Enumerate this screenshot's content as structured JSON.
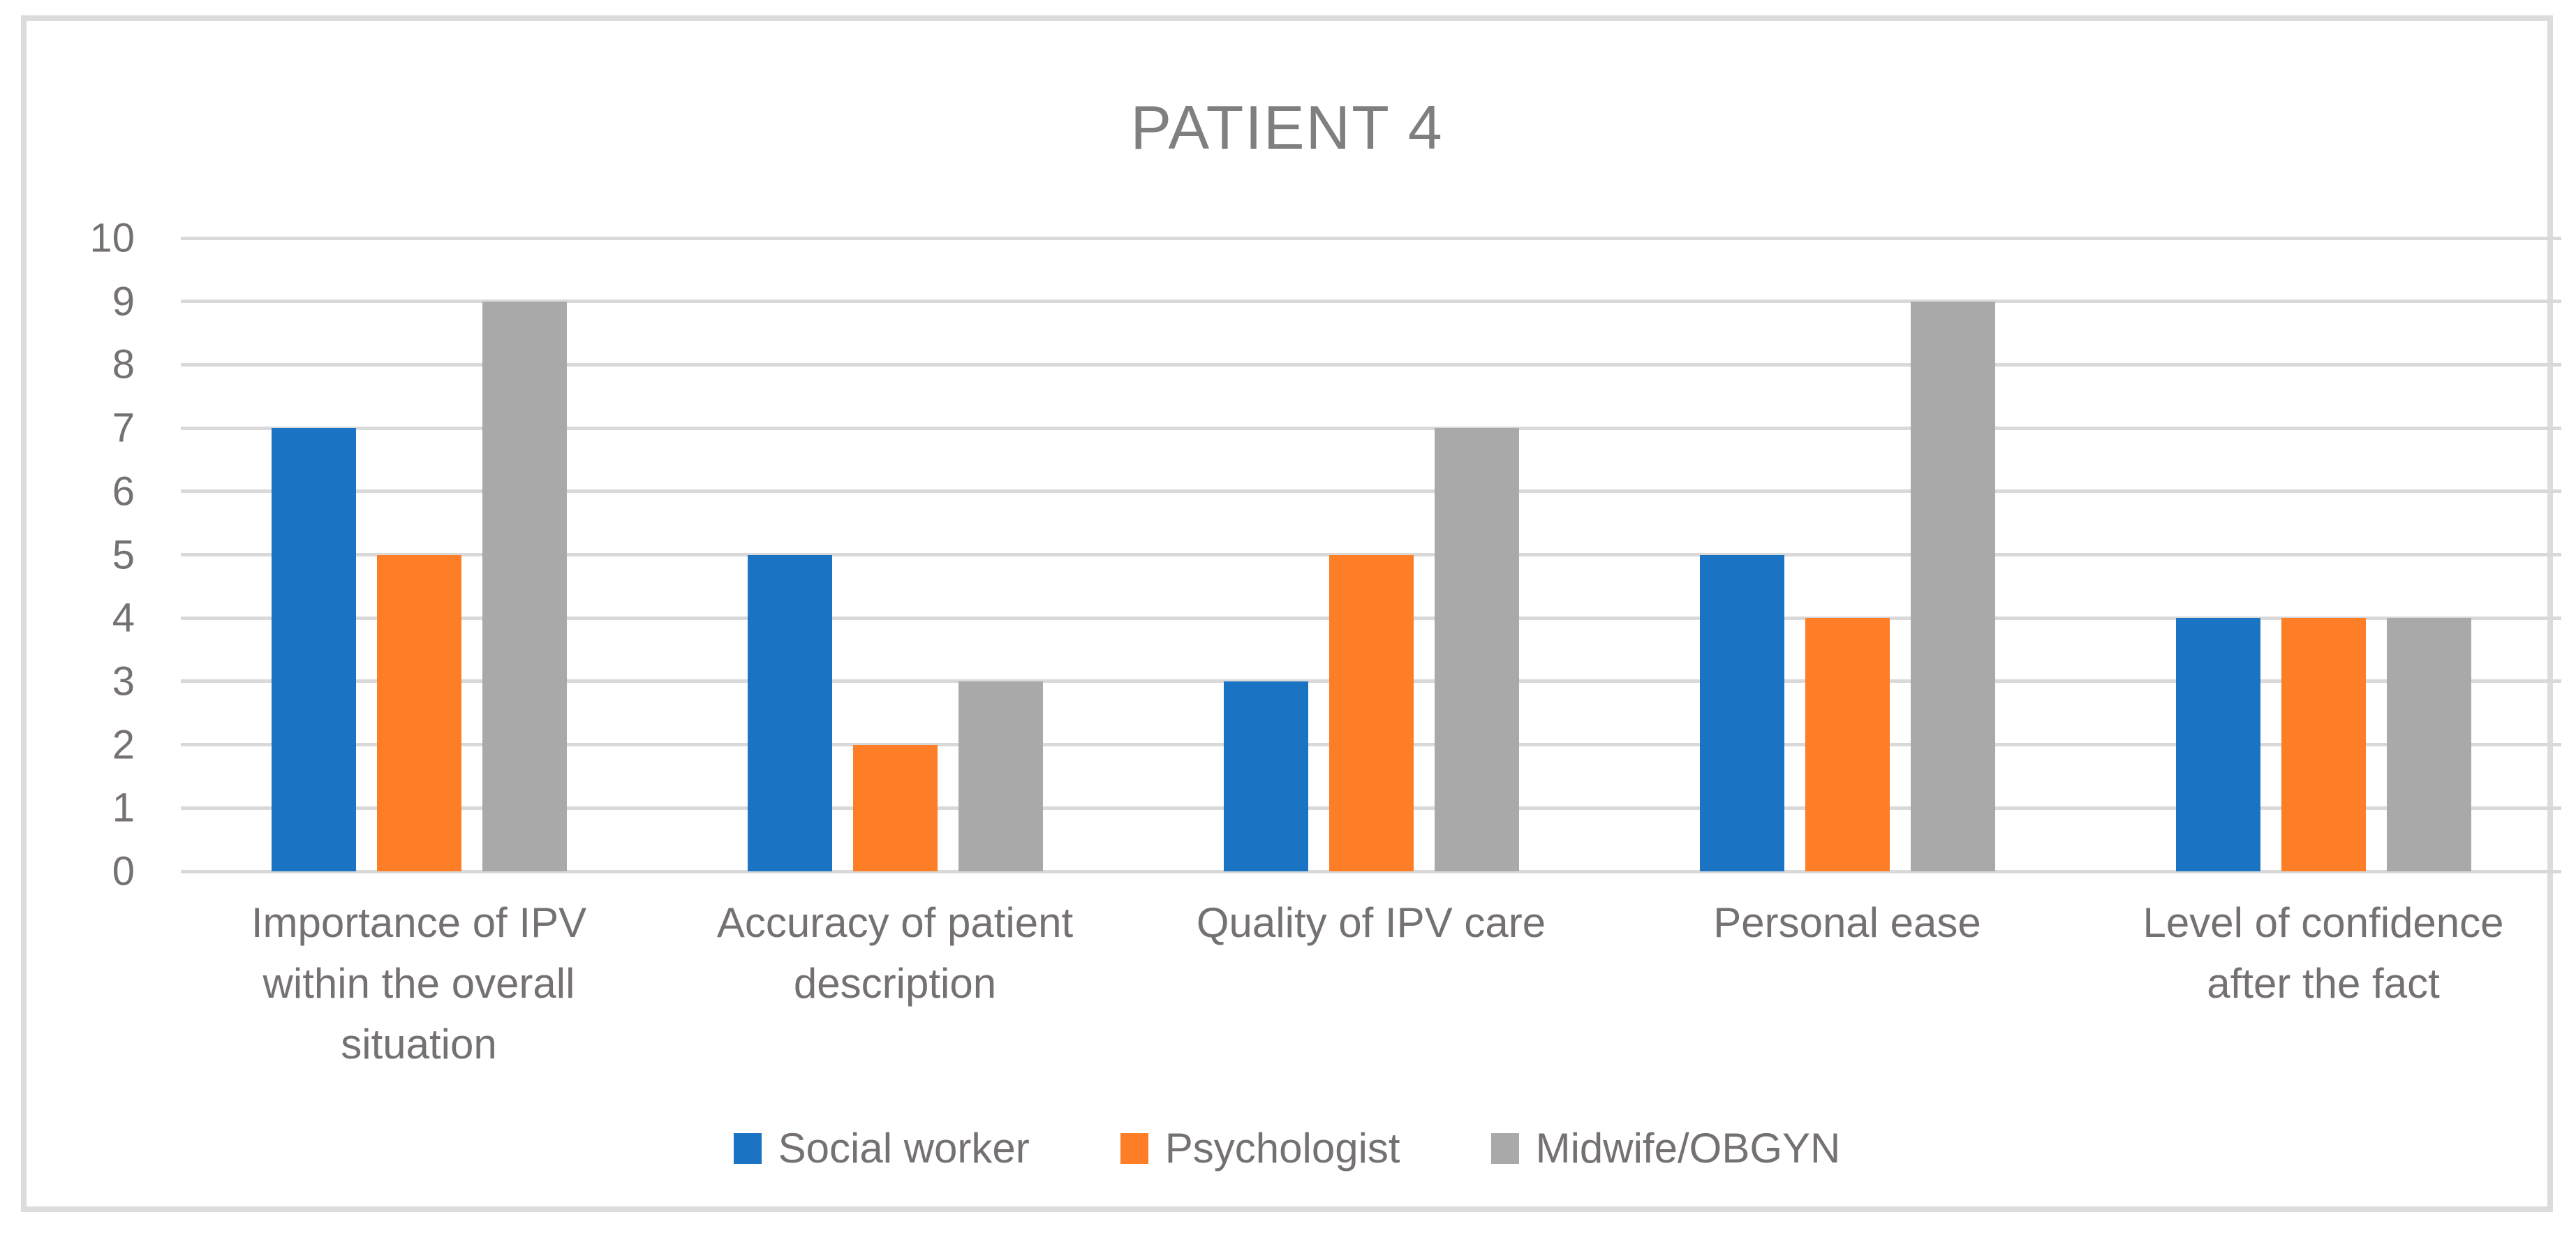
{
  "title": "PATIENT 4",
  "palette": {
    "text_color": "#767171",
    "title_color": "#7f7f7f",
    "grid_color": "#d9d9d9",
    "frame_color": "#dcdcdc",
    "background": "#ffffff"
  },
  "chart_data": {
    "type": "bar",
    "title": "PATIENT 4",
    "categories": [
      "Importance of IPV\nwithin the overall\nsituation",
      "Accuracy of patient\ndescription",
      "Quality of IPV care",
      "Personal ease",
      "Level of confidence\nafter the fact"
    ],
    "series": [
      {
        "name": "Social worker",
        "color": "#1b73c4",
        "values": [
          7,
          5,
          3,
          5,
          4
        ]
      },
      {
        "name": "Psychologist",
        "color": "#fd7e27",
        "values": [
          5,
          2,
          5,
          4,
          4
        ]
      },
      {
        "name": "Midwife/OBGYN",
        "color": "#a9a9a9",
        "values": [
          9,
          3,
          7,
          9,
          4
        ]
      }
    ],
    "xlabel": "",
    "ylabel": "",
    "ylim": [
      0,
      10
    ],
    "yticks": [
      0,
      1,
      2,
      3,
      4,
      5,
      6,
      7,
      8,
      9,
      10
    ],
    "grid": true,
    "legend_position": "bottom"
  }
}
